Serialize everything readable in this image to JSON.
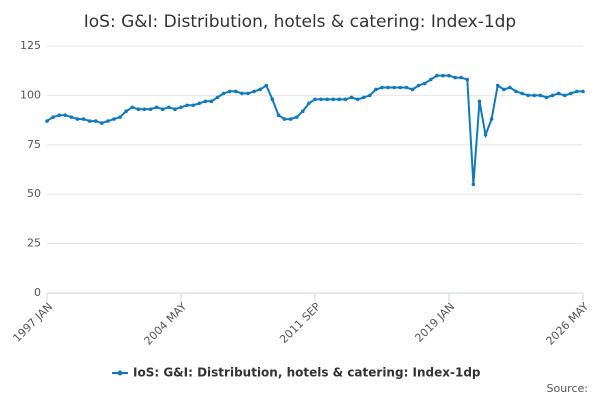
{
  "chart_data": {
    "type": "line",
    "title": "IoS: G&I: Distribution, hotels & catering: Index-1dp",
    "categories": [
      "1997 JAN",
      null,
      null,
      null,
      null,
      null,
      null,
      null,
      null,
      null,
      null,
      null,
      null,
      null,
      null,
      null,
      null,
      null,
      null,
      null,
      null,
      null,
      "2004 MAY",
      null,
      null,
      null,
      null,
      null,
      null,
      null,
      null,
      null,
      null,
      null,
      null,
      null,
      null,
      null,
      null,
      null,
      null,
      null,
      null,
      null,
      "2011 SEP",
      null,
      null,
      null,
      null,
      null,
      null,
      null,
      null,
      null,
      null,
      null,
      null,
      null,
      null,
      null,
      null,
      null,
      null,
      null,
      null,
      null,
      "2019 JAN",
      null,
      null,
      null,
      null,
      null,
      null,
      null,
      null,
      null,
      null,
      null,
      null,
      null,
      null,
      null,
      null,
      null,
      null,
      null,
      null,
      null,
      "2026 MAY"
    ],
    "series": [
      {
        "name": "IoS: G&I: Distribution, hotels & catering: Index-1dp",
        "color": "#1279bd",
        "values": [
          87,
          89,
          90,
          90,
          89,
          88,
          88,
          87,
          87,
          86,
          87,
          88,
          89,
          92,
          94,
          93,
          93,
          93,
          94,
          93,
          94,
          93,
          94,
          95,
          95,
          96,
          97,
          97,
          99,
          101,
          102,
          102,
          101,
          101,
          102,
          103,
          105,
          98,
          90,
          88,
          88,
          89,
          92,
          96,
          98,
          98,
          98,
          98,
          98,
          98,
          99,
          98,
          99,
          100,
          103,
          104,
          104,
          104,
          104,
          104,
          103,
          105,
          106,
          108,
          110,
          110,
          110,
          109,
          109,
          108,
          55,
          97,
          80,
          88,
          105,
          103,
          104,
          102,
          101,
          100,
          100,
          100,
          99,
          100,
          101,
          100,
          101,
          102,
          102
        ]
      }
    ],
    "ylim": [
      0,
      125
    ],
    "yticks": [
      0,
      25,
      50,
      75,
      100,
      125
    ],
    "grid": true,
    "source_label": "Source:"
  }
}
